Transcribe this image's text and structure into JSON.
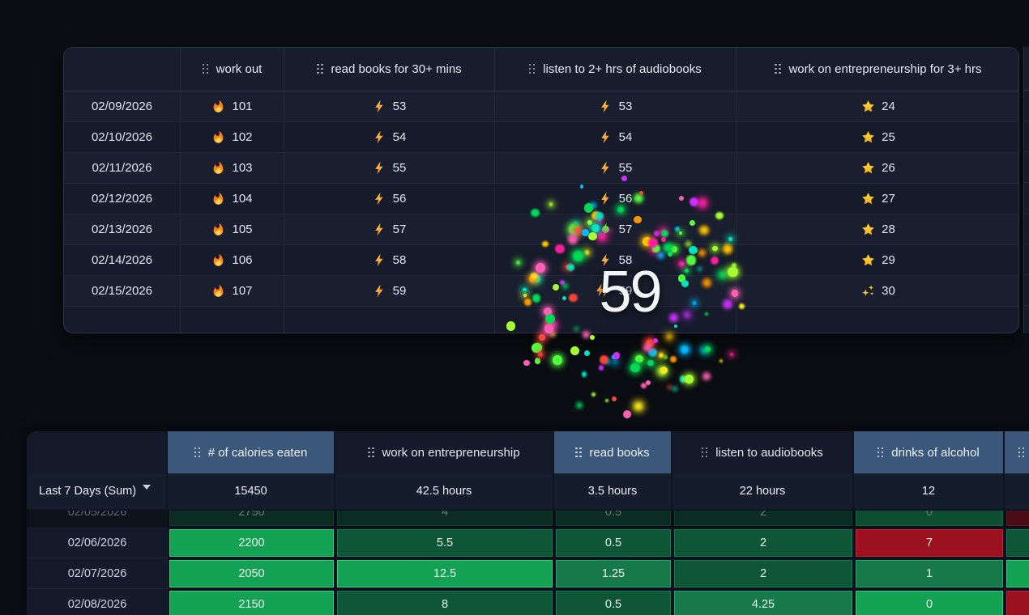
{
  "top_table": {
    "columns": [
      {
        "label": ""
      },
      {
        "label": "work out",
        "icon": "grip-icon"
      },
      {
        "label": "read books for 30+ mins",
        "icon": "grip-icon"
      },
      {
        "label": "listen to 2+ hrs of audiobooks",
        "icon": "grip-icon"
      },
      {
        "label": "work on entrepreneurship for 3+ hrs",
        "icon": "grip-icon"
      }
    ],
    "rows": [
      {
        "date": "02/09/2026",
        "cells": [
          {
            "icon": "fire-icon",
            "value": "101"
          },
          {
            "icon": "bolt-icon",
            "value": "53"
          },
          {
            "icon": "bolt-icon",
            "value": "53"
          },
          {
            "icon": "star-icon",
            "value": "24"
          }
        ]
      },
      {
        "date": "02/10/2026",
        "cells": [
          {
            "icon": "fire-icon",
            "value": "102"
          },
          {
            "icon": "bolt-icon",
            "value": "54"
          },
          {
            "icon": "bolt-icon",
            "value": "54"
          },
          {
            "icon": "star-icon",
            "value": "25"
          }
        ]
      },
      {
        "date": "02/11/2026",
        "cells": [
          {
            "icon": "fire-icon",
            "value": "103"
          },
          {
            "icon": "bolt-icon",
            "value": "55"
          },
          {
            "icon": "bolt-icon",
            "value": "55"
          },
          {
            "icon": "star-icon",
            "value": "26"
          }
        ]
      },
      {
        "date": "02/12/2026",
        "cells": [
          {
            "icon": "fire-icon",
            "value": "104"
          },
          {
            "icon": "bolt-icon",
            "value": "56"
          },
          {
            "icon": "bolt-icon",
            "value": "56"
          },
          {
            "icon": "star-icon",
            "value": "27"
          }
        ]
      },
      {
        "date": "02/13/2026",
        "cells": [
          {
            "icon": "fire-icon",
            "value": "105"
          },
          {
            "icon": "bolt-icon",
            "value": "57"
          },
          {
            "icon": "bolt-icon",
            "value": "57"
          },
          {
            "icon": "star-icon",
            "value": "28"
          }
        ]
      },
      {
        "date": "02/14/2026",
        "cells": [
          {
            "icon": "fire-icon",
            "value": "106"
          },
          {
            "icon": "bolt-icon",
            "value": "58"
          },
          {
            "icon": "bolt-icon",
            "value": "58"
          },
          {
            "icon": "star-icon",
            "value": "29"
          }
        ]
      },
      {
        "date": "02/15/2026",
        "cells": [
          {
            "icon": "fire-icon",
            "value": "107"
          },
          {
            "icon": "bolt-icon",
            "value": "59"
          },
          {
            "icon": "bolt-icon",
            "value": "59"
          },
          {
            "icon": "sparkles-icon",
            "value": "30"
          }
        ]
      }
    ]
  },
  "celebration": {
    "value": "59",
    "icon": "bolt-icon",
    "confetti_colors": [
      "#ff1f9e",
      "#ff5fb5",
      "#ffe81a",
      "#ffc400",
      "#52ff3d",
      "#00d957",
      "#00e5c0",
      "#00b9ff",
      "#ff9500",
      "#ff4538",
      "#d02eff",
      "#a6ff2e"
    ],
    "particle_count": 150
  },
  "bottom_table": {
    "columns": [
      {
        "label": "",
        "selected": false
      },
      {
        "label": "# of calories eaten",
        "selected": true,
        "icon": "grip-icon"
      },
      {
        "label": "work on entrepreneurship",
        "selected": false,
        "icon": "grip-icon"
      },
      {
        "label": "read books",
        "selected": true,
        "icon": "grip-icon"
      },
      {
        "label": "listen to audiobooks",
        "selected": false,
        "icon": "grip-icon"
      },
      {
        "label": "drinks of alcohol",
        "selected": true,
        "icon": "grip-icon"
      },
      {
        "label": "",
        "selected": true,
        "icon": "grip-icon"
      }
    ],
    "summary": {
      "label": "Last 7 Days (Sum)",
      "dropdown_icon": "chevron-down-icon",
      "values": [
        "15450",
        "42.5 hours",
        "3.5 hours",
        "22 hours",
        "12",
        ""
      ]
    },
    "rows": [
      {
        "date": "02/05/2026",
        "dimmed": true,
        "clipped": true,
        "cells": [
          {
            "value": "2750",
            "tone": "g1"
          },
          {
            "value": "4",
            "tone": "g1"
          },
          {
            "value": "0.5",
            "tone": "g1"
          },
          {
            "value": "2",
            "tone": "g1"
          },
          {
            "value": "0",
            "tone": "g3"
          },
          {
            "value": "",
            "tone": "red"
          }
        ]
      },
      {
        "date": "02/06/2026",
        "cells": [
          {
            "value": "2200",
            "tone": "g3"
          },
          {
            "value": "5.5",
            "tone": "g1"
          },
          {
            "value": "0.5",
            "tone": "g1"
          },
          {
            "value": "2",
            "tone": "g1"
          },
          {
            "value": "7",
            "tone": "red"
          },
          {
            "value": "",
            "tone": "g1"
          }
        ]
      },
      {
        "date": "02/07/2026",
        "cells": [
          {
            "value": "2050",
            "tone": "g3"
          },
          {
            "value": "12.5",
            "tone": "g3"
          },
          {
            "value": "1.25",
            "tone": "g2"
          },
          {
            "value": "2",
            "tone": "g1"
          },
          {
            "value": "1",
            "tone": "g2"
          },
          {
            "value": "",
            "tone": "g3"
          }
        ]
      },
      {
        "date": "02/08/2026",
        "cells": [
          {
            "value": "2150",
            "tone": "g3"
          },
          {
            "value": "8",
            "tone": "g1"
          },
          {
            "value": "0.5",
            "tone": "g1"
          },
          {
            "value": "4.25",
            "tone": "g2"
          },
          {
            "value": "0",
            "tone": "g3"
          },
          {
            "value": "",
            "tone": "red"
          }
        ]
      }
    ]
  },
  "colors": {
    "page_bg": "#0a0d12",
    "table_bg": "#151b2a",
    "selected_header": "#3b587b",
    "green_bright": "#13a153",
    "green_medium": "#15794a",
    "green_dark": "#0f5637",
    "red": "#9c1120"
  }
}
